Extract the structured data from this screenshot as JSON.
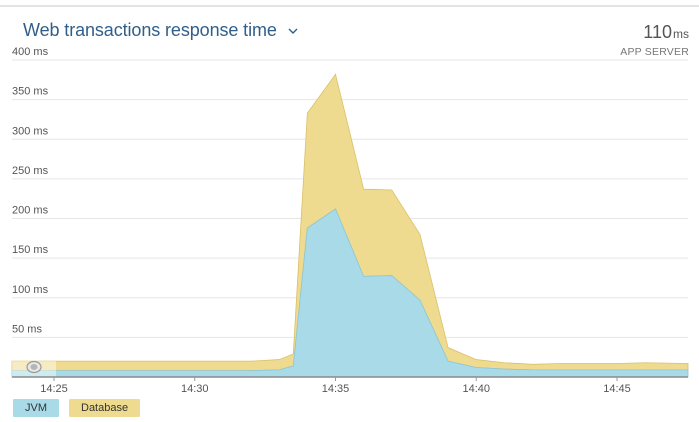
{
  "header": {
    "title": "Web transactions response time",
    "summary_value": "110",
    "summary_unit": "ms",
    "summary_label": "APP SERVER"
  },
  "icons": {
    "title_dropdown": "chevron-down-icon",
    "scrubber": "drag-handle-icon"
  },
  "colors": {
    "jvm": "#a8dae8",
    "database": "#efdb8f",
    "grid": "#e6e6e6",
    "title": "#2f5f8a"
  },
  "legend": [
    {
      "label": "JVM",
      "color": "#a8dae8"
    },
    {
      "label": "Database",
      "color": "#efdb8f"
    }
  ],
  "chart_data": {
    "type": "area",
    "stacked": true,
    "title": "Web transactions response time",
    "xlabel": "",
    "ylabel": "",
    "ylim": [
      0,
      400
    ],
    "y_unit": "ms",
    "y_ticks": [
      "400 ms",
      "350 ms",
      "300 ms",
      "250 ms",
      "200 ms",
      "150 ms",
      "100 ms",
      "50 ms"
    ],
    "y_tick_values": [
      400,
      350,
      300,
      250,
      200,
      150,
      100,
      50
    ],
    "x_ticks": [
      "14:25",
      "14:30",
      "14:35",
      "14:40",
      "14:45"
    ],
    "x": [
      "14:24",
      "14:25",
      "14:26",
      "14:27",
      "14:28",
      "14:29",
      "14:30",
      "14:31",
      "14:32",
      "14:33",
      "14:33:30",
      "14:34",
      "14:35",
      "14:36",
      "14:37",
      "14:38",
      "14:39",
      "14:40",
      "14:41",
      "14:42",
      "14:43",
      "14:44",
      "14:45",
      "14:46",
      "14:47"
    ],
    "series": [
      {
        "name": "JVM",
        "values": [
          8,
          8,
          8,
          8,
          8,
          8,
          8,
          8,
          8,
          9,
          14,
          188,
          212,
          127,
          128,
          97,
          20,
          12,
          10,
          9,
          9,
          9,
          9,
          9,
          9
        ]
      },
      {
        "name": "Database",
        "values": [
          12,
          12,
          12,
          12,
          12,
          12,
          12,
          12,
          12,
          13,
          15,
          145,
          170,
          110,
          108,
          83,
          17,
          10,
          8,
          7,
          8,
          8,
          8,
          9,
          8
        ]
      }
    ],
    "grid": true,
    "legend_position": "bottom-left"
  }
}
